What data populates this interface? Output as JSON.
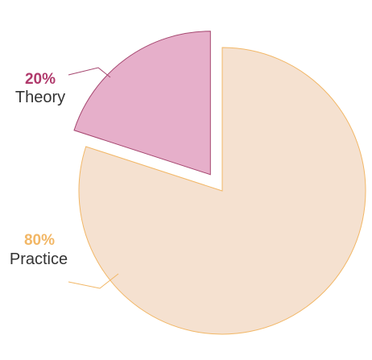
{
  "chart_data": {
    "type": "pie",
    "title": "",
    "slices": [
      {
        "label": "Practice",
        "value": 80,
        "display": "80%",
        "fill": "#f5e1d0",
        "stroke": "#f2b766",
        "label_color": "#f2b766",
        "exploded": false
      },
      {
        "label": "Theory",
        "value": 20,
        "display": "20%",
        "fill": "#e6afca",
        "stroke": "#a5466f",
        "label_color": "#b03a6c",
        "exploded": true
      }
    ]
  }
}
